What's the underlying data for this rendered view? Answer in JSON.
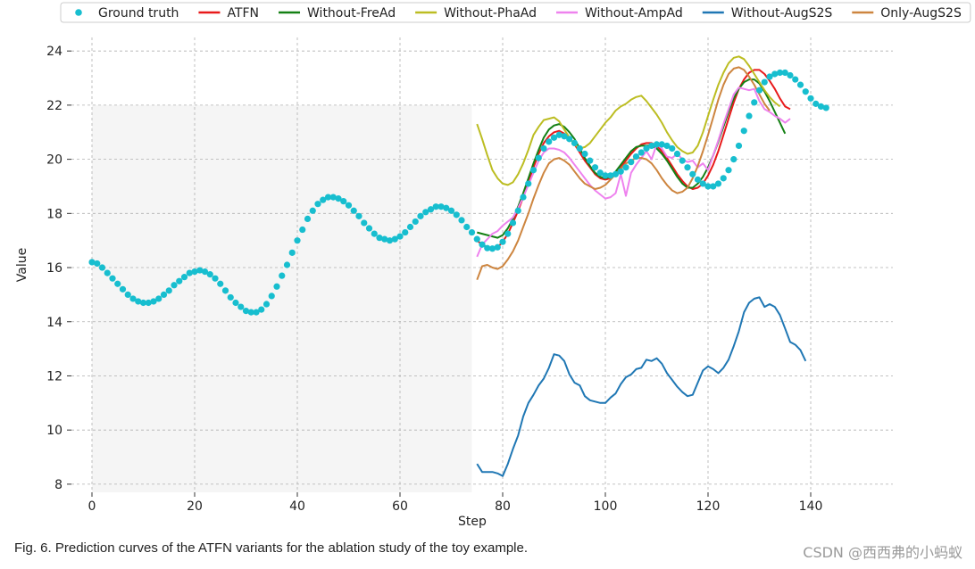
{
  "figure": {
    "caption": "Fig. 6. Prediction curves of the ATFN variants for the ablation study of the toy example.",
    "watermark": "CSDN @西西弗的小蚂蚁"
  },
  "chart_data": {
    "type": "line",
    "xlabel": "Step",
    "ylabel": "Value",
    "xlim": [
      -4,
      156
    ],
    "ylim": [
      7.7,
      24.5
    ],
    "xticks": [
      0,
      20,
      40,
      60,
      80,
      100,
      120,
      140
    ],
    "yticks": [
      8,
      10,
      12,
      14,
      16,
      18,
      20,
      22,
      24
    ],
    "grid": true,
    "legend_position": "top",
    "history_region": {
      "x": [
        0,
        74
      ],
      "y": [
        7.7,
        22
      ],
      "color": "#f5f5f5"
    },
    "ground_truth": {
      "name": "Ground truth",
      "color": "#17becf",
      "x_start": 0,
      "values": [
        16.2,
        16.15,
        16.0,
        15.8,
        15.6,
        15.4,
        15.2,
        15.0,
        14.85,
        14.75,
        14.7,
        14.7,
        14.75,
        14.85,
        15.0,
        15.15,
        15.35,
        15.5,
        15.65,
        15.8,
        15.85,
        15.9,
        15.85,
        15.75,
        15.6,
        15.4,
        15.15,
        14.9,
        14.7,
        14.55,
        14.4,
        14.35,
        14.35,
        14.45,
        14.65,
        14.95,
        15.3,
        15.7,
        16.1,
        16.55,
        17.0,
        17.4,
        17.8,
        18.1,
        18.35,
        18.5,
        18.6,
        18.6,
        18.55,
        18.45,
        18.3,
        18.1,
        17.9,
        17.65,
        17.45,
        17.25,
        17.1,
        17.05,
        17.0,
        17.05,
        17.15,
        17.3,
        17.5,
        17.7,
        17.9,
        18.05,
        18.15,
        18.25,
        18.25,
        18.2,
        18.1,
        17.95,
        17.75,
        17.5,
        17.3,
        17.05,
        16.85,
        16.72,
        16.7,
        16.75,
        16.95,
        17.25,
        17.65,
        18.1,
        18.6,
        19.1,
        19.6,
        20.05,
        20.4,
        20.65,
        20.8,
        20.9,
        20.85,
        20.75,
        20.6,
        20.4,
        20.2,
        19.95,
        19.7,
        19.5,
        19.4,
        19.4,
        19.45,
        19.55,
        19.7,
        19.9,
        20.1,
        20.25,
        20.4,
        20.5,
        20.55,
        20.55,
        20.5,
        20.4,
        20.2,
        19.95,
        19.7,
        19.45,
        19.25,
        19.1,
        19.0,
        19.0,
        19.1,
        19.3,
        19.6,
        20.0,
        20.5,
        21.05,
        21.6,
        22.1,
        22.55,
        22.85,
        23.05,
        23.15,
        23.2,
        23.2,
        23.1,
        22.95,
        22.75,
        22.5,
        22.25,
        22.05,
        21.95,
        21.9
      ]
    },
    "x_pred_start": 75,
    "series": [
      {
        "name": "ATFN",
        "color": "#e8191a",
        "values": [
          17.0,
          16.85,
          16.75,
          16.7,
          16.75,
          16.95,
          17.25,
          17.65,
          18.1,
          18.6,
          19.15,
          19.7,
          20.2,
          20.6,
          20.85,
          21.0,
          21.05,
          20.95,
          20.8,
          20.55,
          20.25,
          19.95,
          19.7,
          19.45,
          19.3,
          19.25,
          19.3,
          19.45,
          19.7,
          19.95,
          20.2,
          20.4,
          20.55,
          20.6,
          20.6,
          20.5,
          20.3,
          20.05,
          19.75,
          19.45,
          19.2,
          19.0,
          18.9,
          18.95,
          19.1,
          19.4,
          19.8,
          20.3,
          20.9,
          21.5,
          22.1,
          22.6,
          22.95,
          23.2,
          23.3,
          23.3,
          23.15,
          22.9,
          22.6,
          22.25,
          21.95,
          21.85
        ]
      },
      {
        "name": "Without-FreAd",
        "color": "#148014",
        "values": [
          17.3,
          17.25,
          17.2,
          17.15,
          17.1,
          17.2,
          17.45,
          17.8,
          18.25,
          18.75,
          19.3,
          19.85,
          20.35,
          20.8,
          21.1,
          21.25,
          21.3,
          21.2,
          21.0,
          20.75,
          20.4,
          20.05,
          19.75,
          19.5,
          19.35,
          19.3,
          19.35,
          19.55,
          19.8,
          20.05,
          20.3,
          20.45,
          20.5,
          20.5,
          20.5,
          20.4,
          20.2,
          19.95,
          19.65,
          19.35,
          19.1,
          18.95,
          18.95,
          19.1,
          19.35,
          19.7,
          20.15,
          20.65,
          21.2,
          21.75,
          22.25,
          22.6,
          22.85,
          22.95,
          22.95,
          22.8,
          22.5,
          22.15,
          21.75,
          21.35,
          20.95
        ]
      },
      {
        "name": "Without-PhaAd",
        "color": "#bcbd22",
        "values": [
          21.3,
          20.75,
          20.15,
          19.6,
          19.3,
          19.1,
          19.05,
          19.15,
          19.45,
          19.85,
          20.35,
          20.9,
          21.2,
          21.45,
          21.5,
          21.55,
          21.4,
          21.1,
          20.8,
          20.55,
          20.4,
          20.45,
          20.6,
          20.85,
          21.1,
          21.35,
          21.55,
          21.8,
          21.95,
          22.05,
          22.2,
          22.3,
          22.35,
          22.15,
          21.9,
          21.65,
          21.35,
          21.0,
          20.7,
          20.45,
          20.3,
          20.2,
          20.25,
          20.5,
          21.0,
          21.6,
          22.2,
          22.75,
          23.2,
          23.55,
          23.75,
          23.8,
          23.7,
          23.45,
          23.15,
          22.85,
          22.55,
          22.3,
          22.1,
          21.95
        ]
      },
      {
        "name": "Without-AmpAd",
        "color": "#ee82ee",
        "values": [
          16.4,
          16.85,
          17.05,
          17.25,
          17.35,
          17.55,
          17.7,
          17.85,
          18.2,
          18.6,
          19.05,
          19.5,
          19.95,
          20.25,
          20.4,
          20.4,
          20.35,
          20.25,
          20.05,
          19.8,
          19.55,
          19.3,
          19.05,
          18.85,
          18.7,
          18.55,
          18.6,
          18.75,
          19.45,
          18.65,
          19.5,
          19.8,
          20.05,
          20.3,
          20.0,
          20.55,
          20.4,
          20.1,
          20.05,
          20.2,
          20.0,
          19.9,
          19.95,
          19.7,
          19.85,
          19.6,
          20.15,
          20.7,
          21.3,
          21.85,
          22.4,
          22.65,
          22.6,
          22.55,
          22.6,
          22.15,
          21.85,
          21.75,
          21.6,
          21.5,
          21.35,
          21.5
        ]
      },
      {
        "name": "Without-AugS2S",
        "color": "#1f77b4",
        "values": [
          8.75,
          8.45,
          8.45,
          8.45,
          8.4,
          8.3,
          8.75,
          9.3,
          9.8,
          10.5,
          11.0,
          11.3,
          11.65,
          11.9,
          12.3,
          12.8,
          12.75,
          12.55,
          12.05,
          11.75,
          11.65,
          11.25,
          11.1,
          11.05,
          11.0,
          11.0,
          11.2,
          11.35,
          11.7,
          11.95,
          12.05,
          12.25,
          12.3,
          12.6,
          12.55,
          12.65,
          12.45,
          12.1,
          11.85,
          11.6,
          11.4,
          11.25,
          11.3,
          11.75,
          12.2,
          12.35,
          12.25,
          12.1,
          12.3,
          12.6,
          13.1,
          13.65,
          14.35,
          14.7,
          14.85,
          14.9,
          14.55,
          14.65,
          14.55,
          14.25,
          13.75,
          13.25,
          13.15,
          12.95,
          12.55
        ]
      },
      {
        "name": "Only-AugS2S",
        "color": "#cd853f",
        "values": [
          15.55,
          16.05,
          16.1,
          16.0,
          15.95,
          16.05,
          16.3,
          16.6,
          17.0,
          17.5,
          18.0,
          18.55,
          19.05,
          19.5,
          19.85,
          20.0,
          20.05,
          19.95,
          19.8,
          19.55,
          19.3,
          19.1,
          19.0,
          18.9,
          18.95,
          19.05,
          19.25,
          19.45,
          19.65,
          19.85,
          19.95,
          20.05,
          20.05,
          20.0,
          19.85,
          19.6,
          19.3,
          19.05,
          18.85,
          18.75,
          18.8,
          18.95,
          19.3,
          19.75,
          20.3,
          20.9,
          21.55,
          22.2,
          22.75,
          23.15,
          23.35,
          23.4,
          23.3,
          23.05,
          22.75,
          22.4,
          22.05,
          21.8
        ]
      }
    ]
  }
}
